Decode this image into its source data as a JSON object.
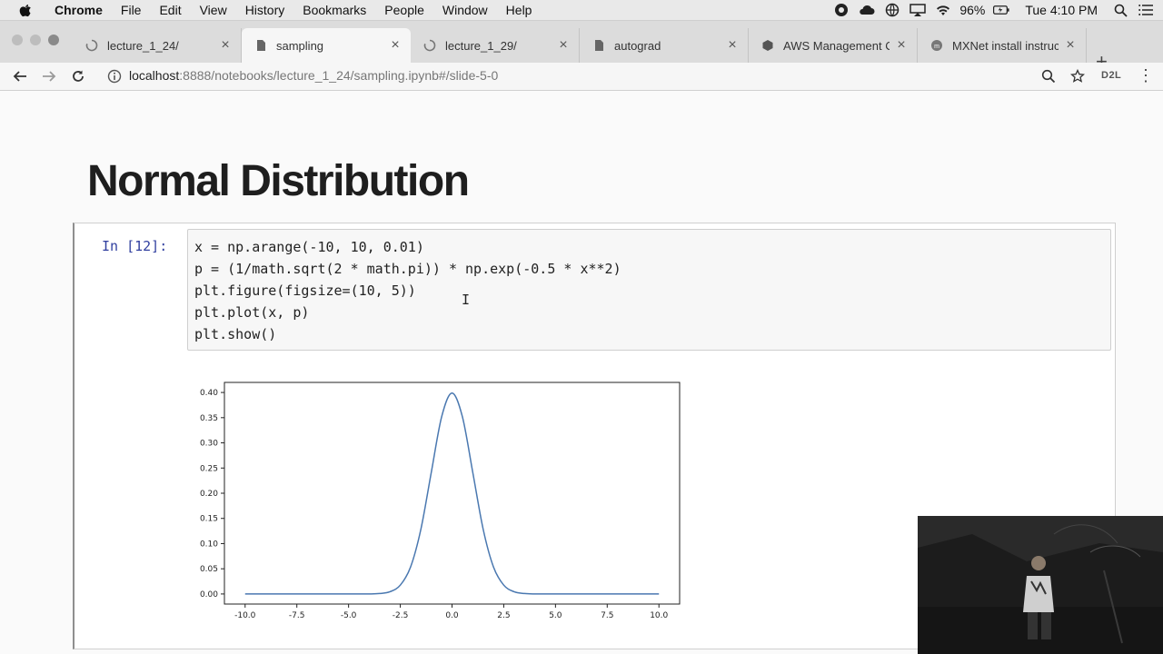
{
  "menubar": {
    "app": "Chrome",
    "items": [
      "File",
      "Edit",
      "View",
      "History",
      "Bookmarks",
      "People",
      "Window",
      "Help"
    ],
    "battery": "96%",
    "clock": "Tue 4:10 PM"
  },
  "tabs": [
    {
      "label": "lecture_1_24/",
      "icon": "loading-spinner-icon",
      "active": false
    },
    {
      "label": "sampling",
      "icon": "page-icon",
      "active": true
    },
    {
      "label": "lecture_1_29/",
      "icon": "loading-spinner-icon",
      "active": false
    },
    {
      "label": "autograd",
      "icon": "page-icon",
      "active": false
    },
    {
      "label": "AWS Management Co",
      "icon": "aws-icon",
      "active": false
    },
    {
      "label": "MXNet install instruc",
      "icon": "mxnet-icon",
      "active": false
    }
  ],
  "toolbar": {
    "url_host": "localhost",
    "url_rest": ":8888/notebooks/lecture_1_24/sampling.ipynb#/slide-5-0",
    "extension_label": "D2L"
  },
  "slide": {
    "title": "Normal Distribution"
  },
  "cell": {
    "prompt": "In [12]:",
    "code_lines": [
      "x = np.arange(-10, 10, 0.01)",
      "p = (1/math.sqrt(2 * math.pi)) * np.exp(-0.5 * x**2)",
      "plt.figure(figsize=(10, 5))",
      "plt.plot(x, p)",
      "plt.show()"
    ]
  },
  "chart_data": {
    "type": "line",
    "title": "",
    "xlabel": "",
    "ylabel": "",
    "xlim": [
      -11,
      11
    ],
    "ylim": [
      -0.02,
      0.42
    ],
    "x_ticks": [
      "-10.0",
      "-7.5",
      "-5.0",
      "-2.5",
      "0.0",
      "2.5",
      "5.0",
      "7.5",
      "10.0"
    ],
    "y_ticks": [
      "0.00",
      "0.05",
      "0.10",
      "0.15",
      "0.20",
      "0.25",
      "0.30",
      "0.35",
      "0.40"
    ],
    "series": [
      {
        "color": "#4a78b0",
        "x": [
          -10,
          -5,
          -4,
          -3.5,
          -3,
          -2.5,
          -2,
          -1.5,
          -1,
          -0.5,
          0,
          0.5,
          1,
          1.5,
          2,
          2.5,
          3,
          3.5,
          4,
          5,
          10
        ],
        "y": [
          0.0,
          0.0,
          0.0001,
          0.0009,
          0.0044,
          0.0175,
          0.054,
          0.1295,
          0.242,
          0.352,
          0.3989,
          0.352,
          0.242,
          0.1295,
          0.054,
          0.0175,
          0.0044,
          0.0009,
          0.0001,
          0.0,
          0.0
        ]
      }
    ],
    "grid": false,
    "legend": "none"
  }
}
